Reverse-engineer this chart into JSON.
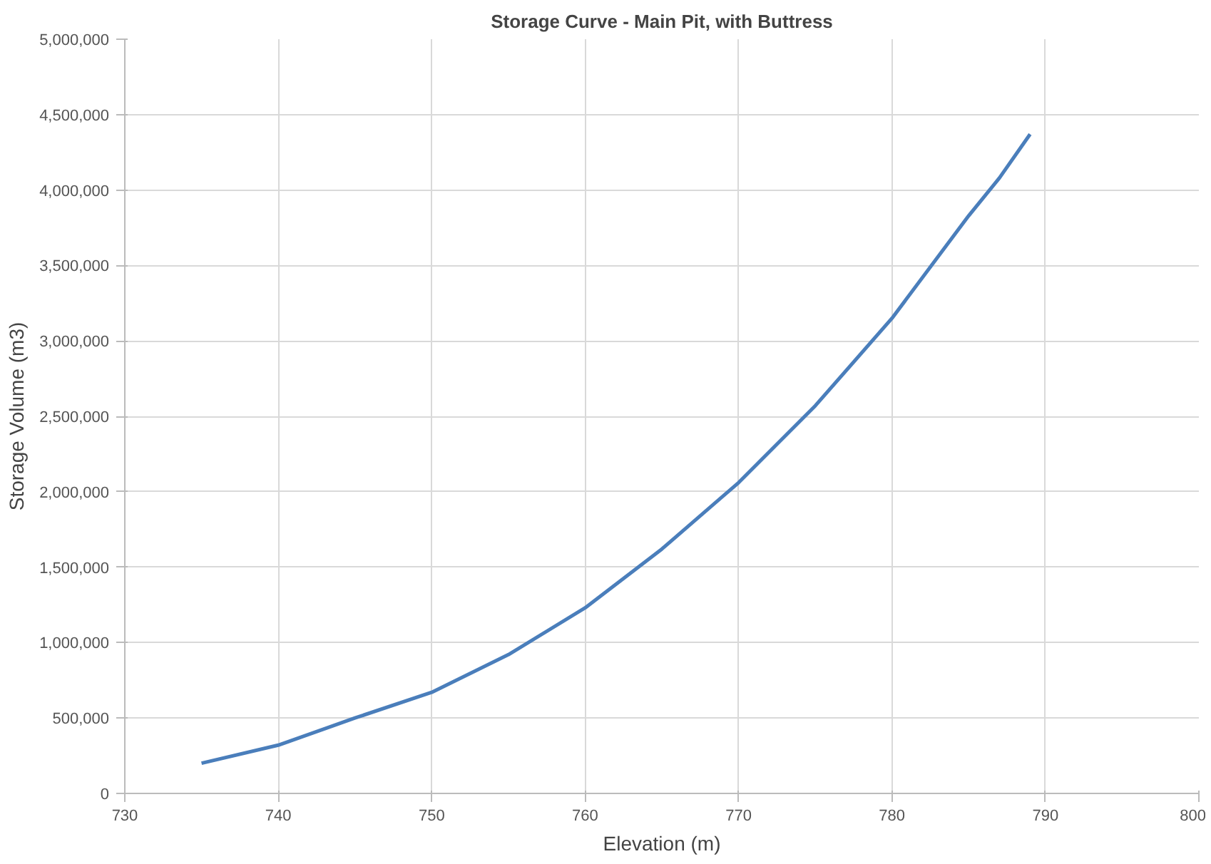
{
  "chart_data": {
    "type": "line",
    "title": "Storage Curve - Main Pit, with Buttress",
    "xlabel": "Elevation (m)",
    "ylabel": "Storage Volume (m3)",
    "x": [
      735,
      740,
      745,
      750,
      755,
      760,
      765,
      770,
      775,
      780,
      785,
      787,
      789
    ],
    "series": [
      {
        "color": "#4a7ebb",
        "values": [
          200000,
          320000,
          500000,
          670000,
          920000,
          1230000,
          1620000,
          2060000,
          2570000,
          3150000,
          3830000,
          4080000,
          4370000
        ]
      }
    ],
    "xlim": [
      730,
      800
    ],
    "xticks": [
      730,
      740,
      750,
      760,
      770,
      780,
      790,
      800
    ],
    "ylim": [
      0,
      5000000
    ],
    "yticks": [
      {
        "value": 0,
        "label": "0"
      },
      {
        "value": 500000,
        "label": "500,000"
      },
      {
        "value": 1000000,
        "label": "1,000,000"
      },
      {
        "value": 1500000,
        "label": "1,500,000"
      },
      {
        "value": 2000000,
        "label": "2,000,000"
      },
      {
        "value": 2500000,
        "label": "2,500,000"
      },
      {
        "value": 3000000,
        "label": "3,000,000"
      },
      {
        "value": 3500000,
        "label": "3,500,000"
      },
      {
        "value": 4000000,
        "label": "4,000,000"
      },
      {
        "value": 4500000,
        "label": "4,500,000"
      },
      {
        "value": 5000000,
        "label": "5,000,000"
      }
    ],
    "grid": true,
    "marker": "none",
    "line_style": "solid"
  }
}
